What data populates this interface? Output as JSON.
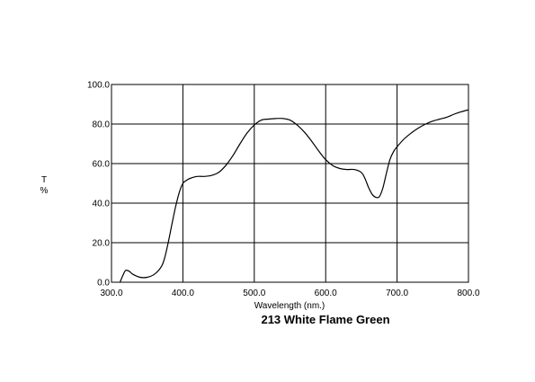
{
  "chart_data": {
    "type": "line",
    "title": "213 White Flame Green",
    "xlabel": "Wavelength (nm.)",
    "ylabel": "T\n%",
    "xlim": [
      300,
      800
    ],
    "ylim": [
      0,
      100
    ],
    "grid": true,
    "x_ticks": [
      "300.0",
      "400.0",
      "500.0",
      "600.0",
      "700.0",
      "800.0"
    ],
    "y_ticks": [
      "0.0",
      "20.0",
      "40.0",
      "60.0",
      "80.0",
      "100.0"
    ],
    "series": [
      {
        "color": "#000000",
        "x": [
          312,
          316,
          320,
          325,
          330,
          340,
          350,
          360,
          370,
          375,
          380,
          385,
          390,
          395,
          400,
          405,
          410,
          420,
          430,
          440,
          450,
          460,
          470,
          480,
          490,
          500,
          510,
          520,
          530,
          540,
          550,
          560,
          570,
          580,
          590,
          600,
          610,
          620,
          630,
          640,
          650,
          655,
          660,
          665,
          670,
          675,
          680,
          685,
          690,
          695,
          700,
          710,
          720,
          730,
          740,
          750,
          760,
          770,
          780,
          790,
          800
        ],
        "y": [
          0.0,
          3.5,
          6.0,
          5.5,
          4.0,
          2.5,
          2.5,
          4.0,
          8.0,
          13.0,
          21.0,
          30.0,
          38.5,
          45.5,
          50.0,
          51.5,
          52.5,
          53.5,
          53.5,
          54.0,
          55.5,
          59.0,
          64.0,
          70.0,
          75.5,
          79.5,
          82.0,
          82.5,
          82.8,
          82.8,
          82.0,
          79.5,
          76.0,
          71.5,
          66.5,
          62.0,
          59.0,
          57.5,
          57.0,
          57.0,
          55.5,
          52.5,
          48.0,
          44.5,
          43.0,
          43.2,
          47.5,
          55.0,
          62.0,
          66.0,
          68.5,
          72.5,
          75.5,
          78.0,
          80.0,
          81.5,
          82.5,
          83.5,
          85.0,
          86.2,
          87.2
        ]
      }
    ]
  }
}
